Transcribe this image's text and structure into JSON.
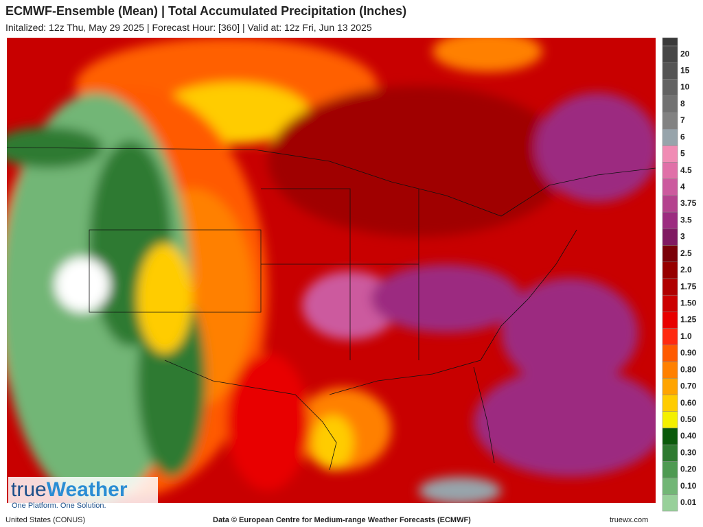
{
  "header": {
    "title": "ECMWF-Ensemble (Mean)  | Total Accumulated Precipitation (Inches)",
    "subtitle": "Initalized: 12z Thu, May 29 2025  |  Forecast Hour: [360]  |  Valid at: 12z Fri, Jun 13 2025"
  },
  "legend": [
    {
      "label": "20",
      "color": "#474747"
    },
    {
      "label": "15",
      "color": "#555555"
    },
    {
      "label": "10",
      "color": "#636363"
    },
    {
      "label": "8",
      "color": "#727272"
    },
    {
      "label": "7",
      "color": "#828282"
    },
    {
      "label": "6",
      "color": "#97a4ab"
    },
    {
      "label": "5",
      "color": "#f08cb4"
    },
    {
      "label": "4.5",
      "color": "#e070a8"
    },
    {
      "label": "4",
      "color": "#cc5a9e"
    },
    {
      "label": "3.75",
      "color": "#b4428e"
    },
    {
      "label": "3.5",
      "color": "#9c2c80"
    },
    {
      "label": "3",
      "color": "#801a62"
    },
    {
      "label": "2.5",
      "color": "#7a0008"
    },
    {
      "label": "2.0",
      "color": "#960000"
    },
    {
      "label": "1.75",
      "color": "#b00000"
    },
    {
      "label": "1.50",
      "color": "#cc0000"
    },
    {
      "label": "1.25",
      "color": "#e80000"
    },
    {
      "label": "1.0",
      "color": "#ff2a10"
    },
    {
      "label": "0.90",
      "color": "#ff5a00"
    },
    {
      "label": "0.80",
      "color": "#ff8000"
    },
    {
      "label": "0.70",
      "color": "#ffa400"
    },
    {
      "label": "0.60",
      "color": "#ffcc00"
    },
    {
      "label": "0.50",
      "color": "#f4f000"
    },
    {
      "label": "0.40",
      "color": "#0a5a0a"
    },
    {
      "label": "0.30",
      "color": "#2e7a30"
    },
    {
      "label": "0.20",
      "color": "#4e9a52"
    },
    {
      "label": "0.10",
      "color": "#72b676"
    },
    {
      "label": "0.01",
      "color": "#98d09a"
    }
  ],
  "logo": {
    "name_part1": "true",
    "name_part2": "Weather",
    "tagline": "One Platform. One Solution."
  },
  "footer": {
    "region": "United States (CONUS)",
    "credit": "Data © European Centre for Medium-range Weather Forecasts (ECMWF)",
    "site": "truewx.com"
  }
}
